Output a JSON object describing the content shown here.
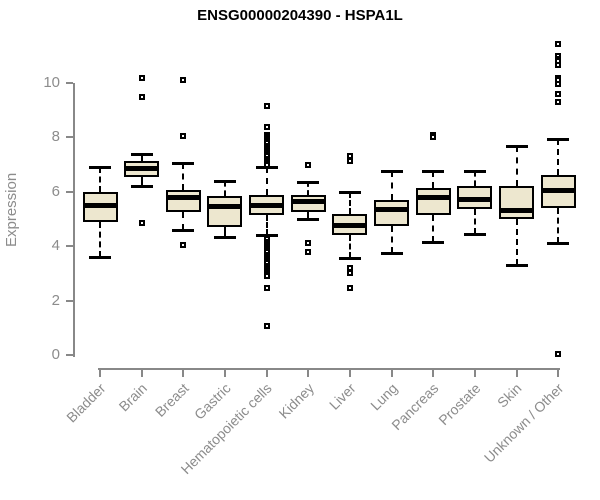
{
  "header": {
    "title": "ENSG00000204390 - HSPA1L"
  },
  "chart_data": {
    "type": "boxplot",
    "title": "ENSG00000204390 - HSPA1L",
    "xlabel": "",
    "ylabel": "Expression",
    "ylim": [
      0,
      11.5
    ],
    "yticks": [
      0,
      2,
      4,
      6,
      8,
      10
    ],
    "grid": false,
    "legend": "none",
    "colors": {
      "box_fill": "#EDE7CF",
      "box_border": "#000000",
      "median": "#000000",
      "axis": "#888888",
      "tick_label": "#8c8c8c",
      "title": "#000000",
      "background": "#ffffff"
    },
    "categories": [
      "Bladder",
      "Brain",
      "Breast",
      "Gastric",
      "Hematopoietic cells",
      "Kidney",
      "Liver",
      "Lung",
      "Pancreas",
      "Prostate",
      "Skin",
      "Unknown / Other"
    ],
    "series": [
      {
        "name": "Bladder",
        "whisker_low": 3.6,
        "q1": 4.9,
        "median": 5.5,
        "q3": 6.0,
        "whisker_high": 6.9,
        "outliers": []
      },
      {
        "name": "Brain",
        "whisker_low": 6.2,
        "q1": 6.55,
        "median": 6.85,
        "q3": 7.15,
        "whisker_high": 7.4,
        "outliers": [
          10.2,
          9.5,
          4.85
        ]
      },
      {
        "name": "Breast",
        "whisker_low": 4.6,
        "q1": 5.25,
        "median": 5.8,
        "q3": 6.05,
        "whisker_high": 7.05,
        "outliers": [
          10.1,
          8.05,
          4.05
        ]
      },
      {
        "name": "Gastric",
        "whisker_low": 4.35,
        "q1": 4.7,
        "median": 5.45,
        "q3": 5.85,
        "whisker_high": 6.4,
        "outliers": []
      },
      {
        "name": "Hematopoietic cells",
        "whisker_low": 4.4,
        "q1": 5.15,
        "median": 5.5,
        "q3": 5.9,
        "whisker_high": 6.9,
        "outliers": [
          9.15,
          8.4,
          8.1,
          8.02,
          7.94,
          7.86,
          7.78,
          7.7,
          7.62,
          7.54,
          7.46,
          7.38,
          7.3,
          7.22,
          7.14,
          7.06,
          6.98,
          4.25,
          4.17,
          4.09,
          4.01,
          3.93,
          3.85,
          3.77,
          3.69,
          3.61,
          3.53,
          3.45,
          3.37,
          3.29,
          3.21,
          3.13,
          3.05,
          2.97,
          2.89,
          2.45,
          1.05
        ]
      },
      {
        "name": "Kidney",
        "whisker_low": 5.0,
        "q1": 5.25,
        "median": 5.65,
        "q3": 5.9,
        "whisker_high": 6.35,
        "outliers": [
          7.0,
          4.1,
          3.8
        ]
      },
      {
        "name": "Liver",
        "whisker_low": 3.55,
        "q1": 4.4,
        "median": 4.75,
        "q3": 5.2,
        "whisker_high": 6.0,
        "outliers": [
          7.3,
          7.15,
          3.2,
          3.0,
          2.45
        ]
      },
      {
        "name": "Lung",
        "whisker_low": 3.75,
        "q1": 4.75,
        "median": 5.35,
        "q3": 5.7,
        "whisker_high": 6.75,
        "outliers": []
      },
      {
        "name": "Pancreas",
        "whisker_low": 4.15,
        "q1": 5.15,
        "median": 5.8,
        "q3": 6.15,
        "whisker_high": 6.75,
        "outliers": [
          8.1,
          8.0
        ]
      },
      {
        "name": "Prostate",
        "whisker_low": 4.45,
        "q1": 5.35,
        "median": 5.7,
        "q3": 6.2,
        "whisker_high": 6.75,
        "outliers": []
      },
      {
        "name": "Skin",
        "whisker_low": 3.3,
        "q1": 5.0,
        "median": 5.3,
        "q3": 6.2,
        "whisker_high": 7.7,
        "outliers": []
      },
      {
        "name": "Unknown / Other",
        "whisker_low": 4.1,
        "q1": 5.4,
        "median": 6.05,
        "q3": 6.6,
        "whisker_high": 7.95,
        "outliers": [
          11.45,
          11.0,
          10.9,
          10.8,
          10.65,
          10.2,
          10.1,
          9.95,
          9.6,
          9.3,
          0.05
        ]
      }
    ]
  }
}
